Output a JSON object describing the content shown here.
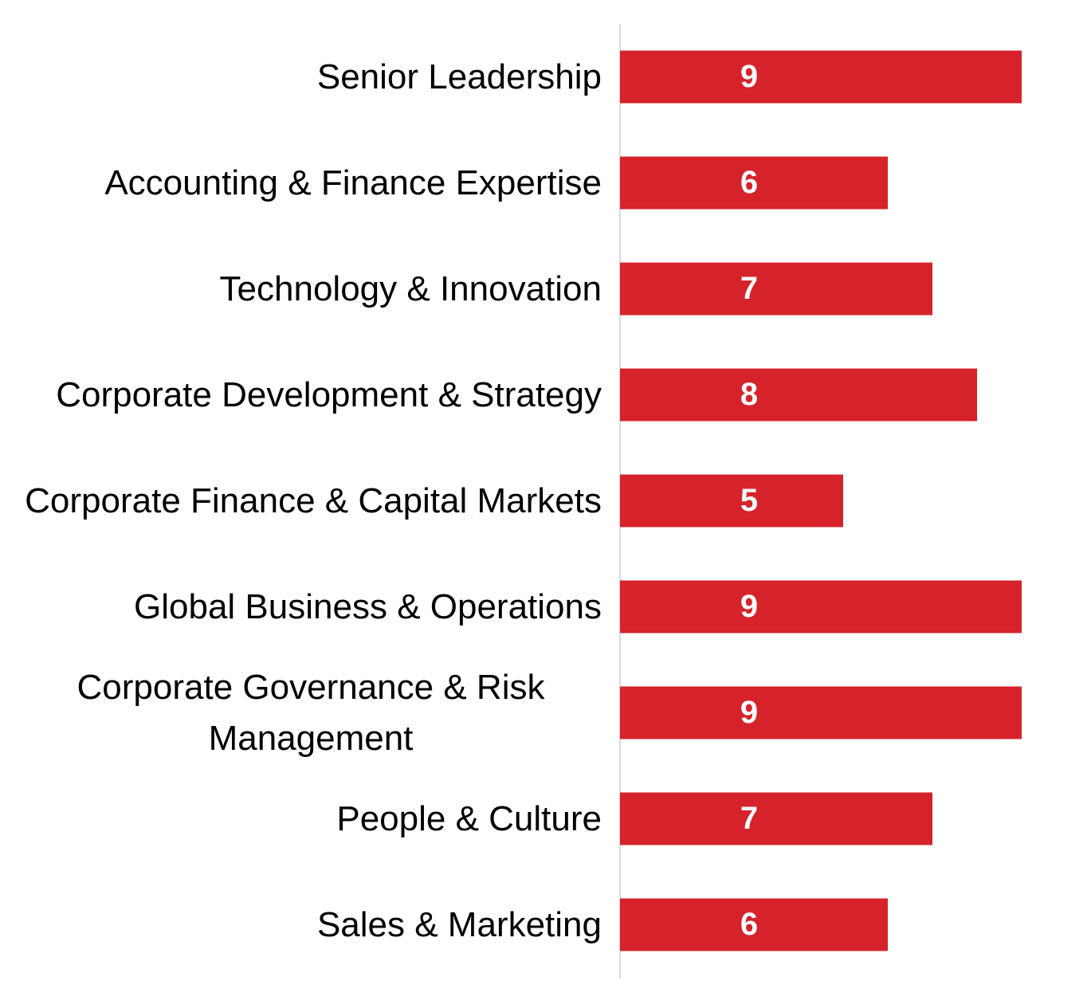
{
  "chart_data": {
    "type": "bar",
    "orientation": "horizontal",
    "categories": [
      "Senior Leadership",
      "Accounting & Finance Expertise",
      "Technology & Innovation",
      "Corporate Development & Strategy",
      "Corporate Finance & Capital Markets",
      "Global Business & Operations",
      "Corporate Governance & Risk Management",
      "People & Culture",
      "Sales & Marketing"
    ],
    "values": [
      9,
      6,
      7,
      8,
      5,
      9,
      9,
      7,
      6
    ],
    "color": "#d6222a",
    "xlim": [
      0,
      9
    ]
  }
}
